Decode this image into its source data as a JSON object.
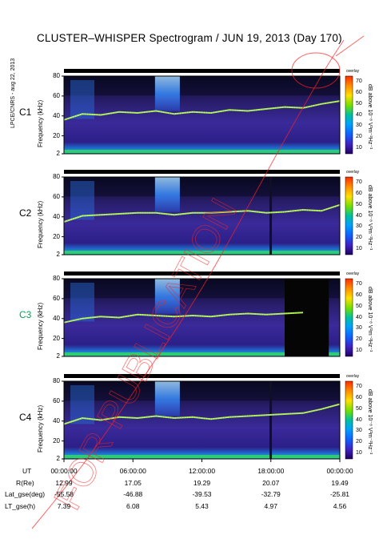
{
  "title": "CLUSTER–WHISPER Spectrogram / JUN 19, 2013 (Day 170)",
  "side_label": "LPCE/CNRS - aug 22, 2013",
  "watermark_text": "FOR PUBLICATION",
  "chart_data": {
    "type": "heatmap",
    "ylabel": "Frequency (kHz)",
    "colorbar_header": "overlay",
    "colorbar_label": "dB above 10⁻⁸ V²m⁻²Hz⁻¹",
    "colorbar_ticks": [
      "70",
      "60",
      "50",
      "40",
      "30",
      "20",
      "10"
    ],
    "colorbar_range": [
      5,
      75
    ],
    "y_ticks": [
      "80",
      "60",
      "40",
      "20",
      "2"
    ],
    "ylim": [
      2,
      80
    ],
    "x_ticks": [
      "00:00:00",
      "06:00:00",
      "12:00:00",
      "18:00:00",
      "00:00:00"
    ],
    "panels": [
      {
        "label": "C1",
        "color": "#000000",
        "trace": [
          36,
          42,
          41,
          44,
          43,
          45,
          42,
          44,
          43,
          46,
          45,
          47,
          49,
          48,
          52,
          55
        ],
        "bright_burst": [
          0.33,
          0.42
        ],
        "gap": null
      },
      {
        "label": "C2",
        "color": "#000000",
        "trace": [
          35,
          41,
          42,
          43,
          44,
          44,
          42,
          44,
          44,
          45,
          46,
          44,
          45,
          47,
          46,
          52
        ],
        "bright_burst": [
          0.33,
          0.42
        ],
        "gap": null
      },
      {
        "label": "C3",
        "color": "#00aa55",
        "trace": [
          36,
          40,
          42,
          41,
          44,
          43,
          42,
          43,
          42,
          44,
          45,
          44,
          45,
          46,
          0,
          0
        ],
        "bright_burst": [
          0.33,
          0.42
        ],
        "gap": [
          0.8,
          0.96
        ]
      },
      {
        "label": "C4",
        "color": "#000000",
        "trace": [
          37,
          43,
          41,
          44,
          43,
          45,
          43,
          44,
          42,
          44,
          45,
          46,
          47,
          48,
          52,
          57
        ],
        "bright_burst": [
          0.33,
          0.42
        ],
        "gap": null
      }
    ]
  },
  "orbit_rows": [
    {
      "label": "UT",
      "values": [
        "00:00:00",
        "06:00:00",
        "12:00:00",
        "18:00:00",
        "00:00:00"
      ]
    },
    {
      "label": "R(Re)",
      "values": [
        "12.99",
        "17.05",
        "19.29",
        "20.07",
        "19.49"
      ]
    },
    {
      "label": "Lat_gse(deg)",
      "values": [
        "-55.58",
        "-46.88",
        "-39.53",
        "-32.79",
        "-25.81"
      ]
    },
    {
      "label": "LT_gse(h)",
      "values": [
        "7.39",
        "6.08",
        "5.43",
        "4.97",
        "4.56"
      ]
    }
  ]
}
